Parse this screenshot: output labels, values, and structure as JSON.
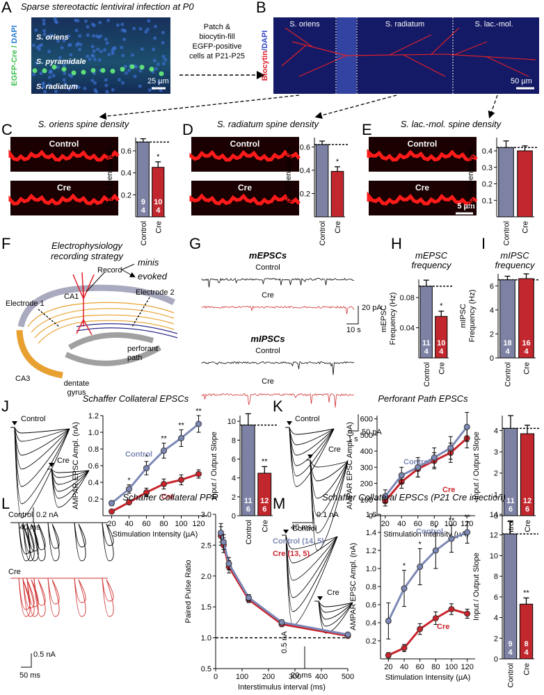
{
  "figure": {
    "panel_letters": [
      "A",
      "B",
      "C",
      "D",
      "E",
      "F",
      "G",
      "H",
      "I",
      "J",
      "K",
      "L",
      "M"
    ],
    "a_title": "Sparse stereotactic lentiviral infection at P0",
    "a_stain": [
      "EGFP-Cre /",
      "DAPI"
    ],
    "a_layers": [
      "S. oriens",
      "S. pyramidale",
      "S. radiatum"
    ],
    "a_scale": "25 µm",
    "method": [
      "Patch &",
      "biocytin-fill",
      "EGFP-positive",
      "cells at P21-P25"
    ],
    "b_stain": [
      "Biocytin",
      "/DAPI"
    ],
    "b_layers": [
      "S. oriens",
      "S. radiatum",
      "S. lac.-mol."
    ],
    "b_scale": "50 µm",
    "spine_labels": [
      "Control",
      "Cre"
    ],
    "spine_scale": "5 µm",
    "f_title": [
      "Electrophysiology",
      "recording strategy"
    ],
    "f_labels": {
      "record": "Record",
      "minis": "minis",
      "evoked": "evoked",
      "ca1": "CA1",
      "ca3": "CA3",
      "electrode1": "Electrode 1",
      "electrode2": "Electrode 2",
      "perforant": [
        "perforant",
        "path"
      ],
      "dentate": [
        "dentate",
        "gyrus"
      ]
    },
    "g": {
      "mepsc": "mEPSCs",
      "mipsc": "mIPSCs",
      "control": "Control",
      "cre": "Cre",
      "scale_e": [
        "20 pA",
        "10 s"
      ],
      "scale_i": [
        "50 pA",
        "1 s"
      ]
    },
    "traces": {
      "control": "Control",
      "cre": "Cre",
      "j_scale": [
        "0.2 nA",
        "40 ms"
      ],
      "k_scale": [
        "0.1 nA",
        "40 ms"
      ],
      "l_scale": [
        "0.5 nA",
        "50 ms"
      ],
      "m_scale": [
        "0.5 nA",
        "20 ms"
      ]
    }
  },
  "chart_data": [
    {
      "type": "bar",
      "title": "S. oriens spine density",
      "ylabel": "Spine Density/µm",
      "categories": [
        "Control",
        "Cre"
      ],
      "values": [
        0.68,
        0.45
      ],
      "errors": [
        0.03,
        0.05
      ],
      "colors": [
        "#7d82a4",
        "#c1272d"
      ],
      "n_labels": [
        [
          "9",
          "4"
        ],
        [
          "10",
          "4"
        ]
      ],
      "significance": "*",
      "ylim": [
        0,
        0.72
      ],
      "yticks": [
        0.2,
        0.4,
        0.6
      ]
    },
    {
      "type": "bar",
      "title": "S. radiatum spine density",
      "ylabel": "Spine Density/µm",
      "categories": [
        "Control",
        "Cre"
      ],
      "values": [
        0.62,
        0.39
      ],
      "errors": [
        0.03,
        0.04
      ],
      "colors": [
        "#7d82a4",
        "#c1272d"
      ],
      "significance": "*",
      "ylim": [
        0,
        0.68
      ],
      "yticks": [
        0.2,
        0.4,
        0.6
      ]
    },
    {
      "type": "bar",
      "title": "S. lac.-mol. spine density",
      "ylabel": "Spine Density/µm",
      "categories": [
        "Control",
        "Cre"
      ],
      "values": [
        0.42,
        0.4
      ],
      "errors": [
        0.04,
        0.03
      ],
      "colors": [
        "#7d82a4",
        "#c1272d"
      ],
      "ylim": [
        0,
        0.48
      ],
      "yticks": [
        0.1,
        0.2,
        0.3,
        0.4
      ]
    },
    {
      "type": "bar",
      "title": [
        "mEPSC",
        "frequency"
      ],
      "ylabel": [
        "mEPSC",
        "Frequency (Hz)"
      ],
      "categories": [
        "Control",
        "Cre"
      ],
      "values": [
        0.095,
        0.055
      ],
      "errors": [
        0.008,
        0.007
      ],
      "colors": [
        "#7d82a4",
        "#c1272d"
      ],
      "n_labels": [
        [
          "11",
          "4"
        ],
        [
          "10",
          "4"
        ]
      ],
      "significance": "*",
      "ylim": [
        0,
        0.104
      ],
      "yticks": [
        0.04,
        0.08
      ]
    },
    {
      "type": "bar",
      "title": [
        "mIPSC",
        "frequency"
      ],
      "ylabel": [
        "mIPSC",
        "Frequency (Hz)"
      ],
      "categories": [
        "Control",
        "Cre"
      ],
      "values": [
        6.5,
        6.6
      ],
      "errors": [
        0.3,
        0.4
      ],
      "colors": [
        "#7d82a4",
        "#c1272d"
      ],
      "n_labels": [
        [
          "18",
          "4"
        ],
        [
          "16",
          "4"
        ]
      ],
      "ylim": [
        0,
        7
      ],
      "yticks": [
        0,
        2,
        4,
        6
      ]
    },
    {
      "type": "line",
      "title": "Schaffer Collateral EPSCs",
      "xlabel": "Stimulation Intensity (µA)",
      "ylabel": "AMPAR EPSC Ampl. (nA)",
      "x": [
        20,
        40,
        60,
        80,
        100,
        120
      ],
      "series": [
        {
          "name": "Control",
          "color": "#7c88b5",
          "values": [
            0.15,
            0.32,
            0.57,
            0.78,
            0.93,
            1.1
          ],
          "errors": [
            0.03,
            0.05,
            0.08,
            0.09,
            0.1,
            0.1
          ]
        },
        {
          "name": "Cre",
          "color": "#c8232c",
          "values": [
            0.05,
            0.16,
            0.28,
            0.38,
            0.43,
            0.5
          ],
          "errors": [
            0.02,
            0.02,
            0.05,
            0.06,
            0.06,
            0.05
          ]
        }
      ],
      "significance": [
        null,
        "*",
        "*",
        "**",
        "**",
        "**"
      ],
      "xlim": [
        10,
        130
      ],
      "ylim": [
        0,
        1.2
      ],
      "xticks": [
        20,
        40,
        60,
        80,
        100,
        120
      ],
      "yticks": [
        0.2,
        0.4,
        0.6,
        0.8,
        {
          "value": 1,
          "label": "1.0"
        },
        1.2
      ]
    },
    {
      "type": "bar",
      "ylabel": "Input / Output Slope",
      "categories": [
        "Control",
        "Cre"
      ],
      "values": [
        9.6,
        4.5
      ],
      "errors": [
        1.2,
        0.7
      ],
      "colors": [
        "#7d82a4",
        "#c1272d"
      ],
      "n_labels": [
        [
          "11",
          "6"
        ],
        [
          "12",
          "6"
        ]
      ],
      "significance": "**",
      "ylim": [
        0,
        10.6
      ],
      "yticks": [
        0,
        2,
        4,
        6,
        8,
        10
      ]
    },
    {
      "type": "line",
      "title": "Perforant Path EPSCs",
      "xlabel": "Stimulation Intensity (µA)",
      "ylabel": "AMPAR EPSC Ampl. (pA)",
      "x": [
        20,
        40,
        60,
        80,
        100,
        120
      ],
      "series": [
        {
          "name": "Control",
          "color": "#7c88b5",
          "values": [
            120,
            250,
            300,
            360,
            420,
            550
          ],
          "errors": [
            40,
            50,
            60,
            60,
            70,
            90
          ]
        },
        {
          "name": "Cre",
          "color": "#c8232c",
          "values": [
            90,
            210,
            290,
            340,
            390,
            480
          ],
          "errors": [
            30,
            40,
            50,
            50,
            60,
            60
          ]
        }
      ],
      "xlim": [
        10,
        130
      ],
      "ylim": [
        0,
        620
      ],
      "xticks": [
        20,
        40,
        60,
        80,
        100,
        120
      ],
      "yticks": [
        0,
        100,
        200,
        300,
        400,
        500,
        600
      ]
    },
    {
      "type": "bar",
      "ylabel": "Input / Output Slope",
      "categories": [
        "Control",
        "Cre"
      ],
      "values": [
        4.1,
        3.85
      ],
      "errors": [
        0.6,
        0.4
      ],
      "colors": [
        "#7d82a4",
        "#c1272d"
      ],
      "n_labels": [
        [
          "11",
          "6"
        ],
        [
          "12",
          "6"
        ]
      ],
      "ylim": [
        0,
        4.7
      ],
      "yticks": [
        0,
        1,
        2,
        3,
        4
      ]
    },
    {
      "type": "line",
      "title": "Schaffer Collateral PPR",
      "xlabel": "Interstimulus interval (ms)",
      "ylabel": "Paired Pulse Ratio",
      "x": [
        20,
        30,
        50,
        125,
        250,
        500
      ],
      "series": [
        {
          "name": "Control (14, 5)",
          "color": "#7c88b5",
          "values": [
            2.7,
            2.55,
            2.2,
            1.65,
            1.25,
            1.05
          ],
          "errors": [
            0.15,
            0.12,
            0.1,
            0.05,
            0.04,
            0.03
          ]
        },
        {
          "name": "Cre (13, 5)",
          "color": "#c8232c",
          "values": [
            2.65,
            2.5,
            2.15,
            1.62,
            1.22,
            1.03
          ],
          "errors": [
            0.15,
            0.12,
            0.1,
            0.05,
            0.04,
            0.03
          ]
        }
      ],
      "reference": 1,
      "xlim": [
        0,
        500
      ],
      "ylim": [
        0.5,
        3
      ],
      "xticks": [
        0,
        100,
        200,
        300,
        400,
        500
      ],
      "yticks": [
        0.5,
        {
          "value": 1,
          "label": "1.0"
        },
        1.5,
        {
          "value": 2,
          "label": "2.0"
        },
        2.5,
        {
          "value": 3,
          "label": "3.0"
        }
      ]
    },
    {
      "type": "line",
      "title": "Schaffer Collateral EPSCs (P21 Cre injection)",
      "xlabel": "Stimulation Intensity (µA)",
      "ylabel": "AMPAR EPSC Ampl. (nA)",
      "x": [
        20,
        40,
        60,
        80,
        100,
        120
      ],
      "series": [
        {
          "name": "Control",
          "color": "#7c88b5",
          "values": [
            0.42,
            0.78,
            1.02,
            1.2,
            1.33,
            1.4
          ],
          "errors": [
            0.2,
            0.2,
            0.2,
            0.2,
            0.15,
            0.12
          ]
        },
        {
          "name": "Cre",
          "color": "#c8232c",
          "values": [
            0.04,
            0.12,
            0.33,
            0.45,
            0.55,
            0.5
          ],
          "errors": [
            0.03,
            0.04,
            0.06,
            0.07,
            0.06,
            0.05
          ]
        }
      ],
      "significance": [
        null,
        "*",
        "*",
        "*",
        "**",
        "**"
      ],
      "xlim": [
        10,
        130
      ],
      "ylim": [
        0,
        1.6
      ],
      "xticks": [
        20,
        40,
        60,
        80,
        100,
        120
      ],
      "yticks": [
        0.2,
        0.4,
        0.6,
        0.8,
        {
          "value": 1,
          "label": "1.0"
        },
        1.2,
        1.4,
        1.6
      ]
    },
    {
      "type": "bar",
      "ylabel": "Input / Output Slope",
      "categories": [
        "Control",
        "Cre"
      ],
      "values": [
        12.1,
        5.3
      ],
      "errors": [
        1.2,
        0.6
      ],
      "colors": [
        "#7d82a4",
        "#c1272d"
      ],
      "n_labels": [
        [
          "9",
          "4"
        ],
        [
          "8",
          "4"
        ]
      ],
      "significance": "**",
      "ylim": [
        0,
        14
      ],
      "yticks": [
        0,
        2,
        4,
        6,
        8,
        10,
        12,
        14
      ]
    }
  ]
}
